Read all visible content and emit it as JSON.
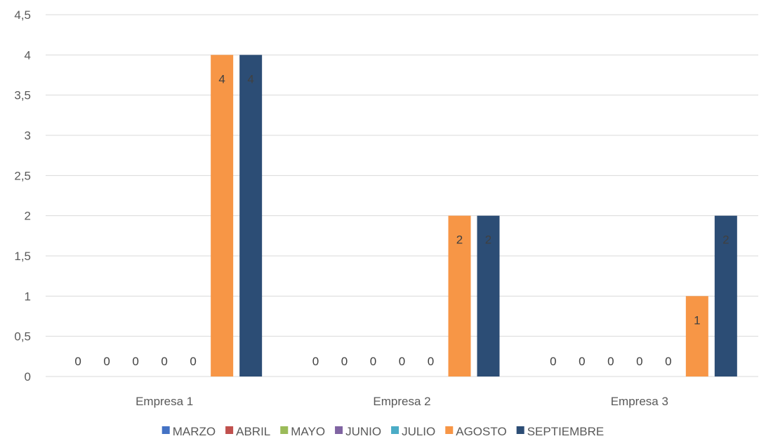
{
  "chart_data": {
    "type": "bar",
    "title": "",
    "xlabel": "",
    "ylabel": "",
    "categories": [
      "Empresa 1",
      "Empresa 2",
      "Empresa 3"
    ],
    "ylim": [
      0,
      4.5
    ],
    "yticks": [
      "0",
      "0,5",
      "1",
      "1,5",
      "2",
      "2,5",
      "3",
      "3,5",
      "4",
      "4,5"
    ],
    "grid": true,
    "legend_position": "bottom",
    "series": [
      {
        "name": "MARZO",
        "color": "#4472C4",
        "values": [
          0,
          0,
          0
        ]
      },
      {
        "name": "ABRIL",
        "color": "#C0504D",
        "values": [
          0,
          0,
          0
        ]
      },
      {
        "name": "MAYO",
        "color": "#9BBB59",
        "values": [
          0,
          0,
          0
        ]
      },
      {
        "name": "JUNIO",
        "color": "#8064A2",
        "values": [
          0,
          0,
          0
        ]
      },
      {
        "name": "JULIO",
        "color": "#4BACC6",
        "values": [
          0,
          0,
          0
        ]
      },
      {
        "name": "AGOSTO",
        "color": "#F79646",
        "values": [
          4,
          2,
          1
        ]
      },
      {
        "name": "SEPTIEMBRE",
        "color": "#2C4D75",
        "values": [
          4,
          2,
          2
        ]
      }
    ]
  }
}
